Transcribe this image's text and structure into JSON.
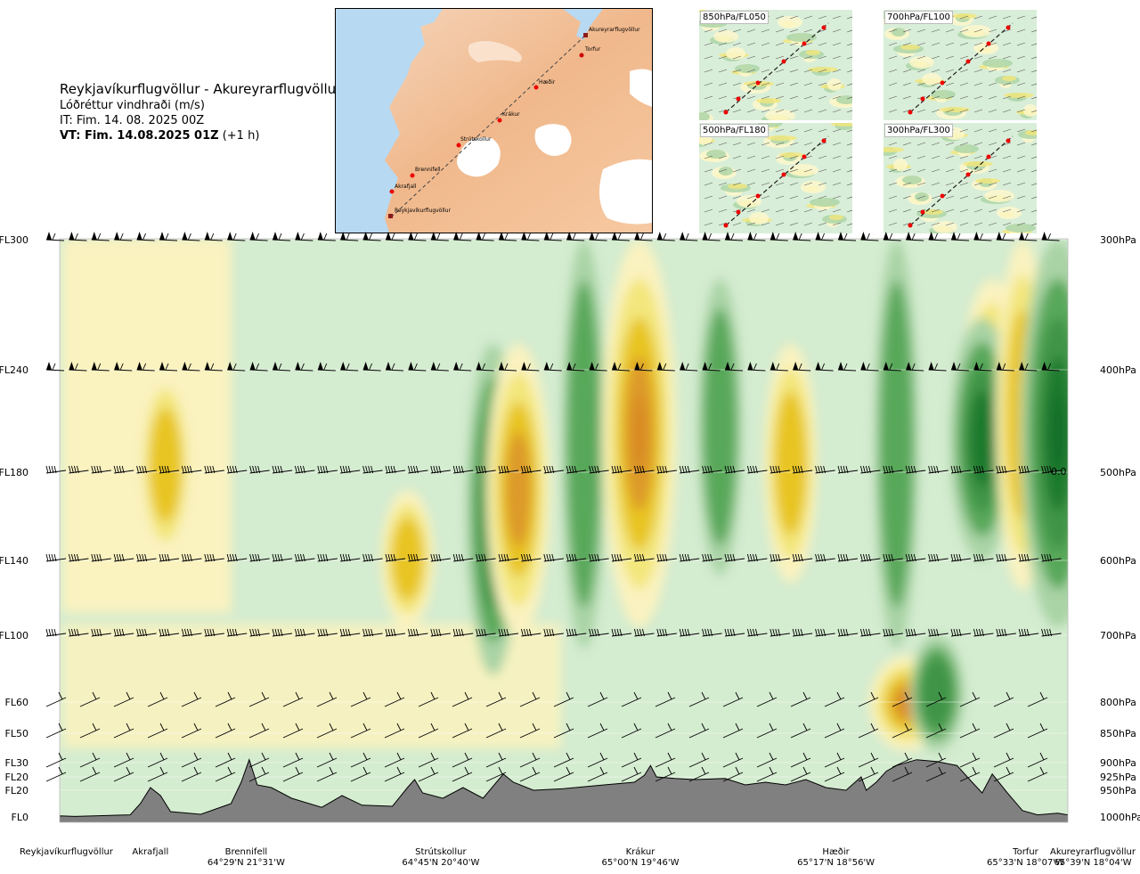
{
  "title": {
    "route": "Reykjavíkurflugvöllur - Akureyrarflugvöllur",
    "parameter": "Lóðréttur vindhraði (m/s)",
    "init_time": "IT: Fim. 14. 08. 2025 00Z",
    "valid_label": "VT: Fim. 14.08.2025 01Z",
    "valid_offset": "(+1 h)"
  },
  "route_map": {
    "waypoints": [
      "Akureyrarflugvöllur",
      "Torfur",
      "Hæðir",
      "Krákur",
      "Strútskollur",
      "Brennifell",
      "Akrafjall",
      "Reykjavíkurflugvöllur"
    ]
  },
  "mini_maps": [
    {
      "label": "850hPa/FL050"
    },
    {
      "label": "700hPa/FL100"
    },
    {
      "label": "500hPa/FL180"
    },
    {
      "label": "300hPa/FL300"
    }
  ],
  "colors": {
    "strong_down": "#1b7a2e",
    "mid_down": "#59a85a",
    "weak_down": "#a9d3a5",
    "faint_down": "#d4ecd0",
    "neutral": "#ffffff",
    "faint_up": "#faf2bf",
    "weak_up": "#f3e67b",
    "mid_up": "#e8c521",
    "strong_up": "#dd9a2a",
    "terrain": "#808080"
  },
  "chart_data": {
    "type": "heatmap",
    "flight_levels": [
      "FL300",
      "FL240",
      "FL180",
      "FL140",
      "FL100",
      "FL60",
      "FL50",
      "FL30",
      "FL20",
      "FL20",
      "FL0"
    ],
    "pressure_levels": [
      "300hPa",
      "400hPa",
      "500hPa",
      "600hPa",
      "700hPa",
      "800hPa",
      "850hPa",
      "900hPa",
      "925hPa",
      "950hPa",
      "1000hPa"
    ],
    "level_hpa": [
      300,
      400,
      500,
      600,
      700,
      800,
      850,
      900,
      925,
      950,
      1000
    ],
    "contour_label": "0.0",
    "x_stations": [
      {
        "name": "Reykjavíkurflugvöllur",
        "coords": "",
        "dist": 0.0
      },
      {
        "name": "Akrafjall",
        "coords": "",
        "dist": 0.09
      },
      {
        "name": "Brennifell",
        "coords": "64°29'N 21°31'W",
        "dist": 0.185
      },
      {
        "name": "Strútskollur",
        "coords": "64°45'N 20°40'W",
        "dist": 0.378
      },
      {
        "name": "Krákur",
        "coords": "65°00'N 19°46'W",
        "dist": 0.576
      },
      {
        "name": "Hæðir",
        "coords": "65°17'N 18°56'W",
        "dist": 0.77
      },
      {
        "name": "Torfur",
        "coords": "65°33'N 18°07'W",
        "dist": 0.955
      },
      {
        "name": "Akureyrarflugvöllur",
        "coords": "65°39'N 18°04'W",
        "dist": 1.0
      }
    ],
    "vertical_velocity_features": [
      {
        "sign": "up",
        "x_center": 0.105,
        "p_top": 400,
        "p_bottom": 600,
        "strength": 2
      },
      {
        "sign": "up",
        "x_center": 0.345,
        "p_top": 520,
        "p_bottom": 690,
        "strength": 2
      },
      {
        "sign": "down",
        "x_center": 0.43,
        "p_top": 380,
        "p_bottom": 760,
        "strength": 2
      },
      {
        "sign": "up",
        "x_center": 0.455,
        "p_top": 380,
        "p_bottom": 700,
        "strength": 3
      },
      {
        "sign": "down",
        "x_center": 0.52,
        "p_top": 300,
        "p_bottom": 720,
        "strength": 1
      },
      {
        "sign": "up",
        "x_center": 0.575,
        "p_top": 300,
        "p_bottom": 690,
        "strength": 4
      },
      {
        "sign": "down",
        "x_center": 0.655,
        "p_top": 330,
        "p_bottom": 620,
        "strength": 1
      },
      {
        "sign": "up",
        "x_center": 0.725,
        "p_top": 380,
        "p_bottom": 630,
        "strength": 2
      },
      {
        "sign": "down",
        "x_center": 0.83,
        "p_top": 300,
        "p_bottom": 720,
        "strength": 1
      },
      {
        "sign": "up",
        "x_center": 0.84,
        "p_top": 730,
        "p_bottom": 880,
        "strength": 4
      },
      {
        "sign": "down",
        "x_center": 0.87,
        "p_top": 700,
        "p_bottom": 880,
        "strength": 2
      },
      {
        "sign": "up",
        "x_center": 0.925,
        "p_top": 330,
        "p_bottom": 560,
        "strength": 3
      },
      {
        "sign": "down",
        "x_center": 0.915,
        "p_top": 360,
        "p_bottom": 600,
        "strength": 3
      },
      {
        "sign": "up",
        "x_center": 0.955,
        "p_top": 300,
        "p_bottom": 640,
        "strength": 2
      },
      {
        "sign": "down",
        "x_center": 0.99,
        "p_top": 300,
        "p_bottom": 690,
        "strength": 4
      }
    ],
    "terrain_hpa": [
      [
        0.0,
        998
      ],
      [
        0.015,
        999
      ],
      [
        0.07,
        996
      ],
      [
        0.08,
        975
      ],
      [
        0.09,
        945
      ],
      [
        0.1,
        960
      ],
      [
        0.11,
        990
      ],
      [
        0.14,
        995
      ],
      [
        0.17,
        975
      ],
      [
        0.18,
        935
      ],
      [
        0.188,
        895
      ],
      [
        0.196,
        940
      ],
      [
        0.21,
        945
      ],
      [
        0.23,
        965
      ],
      [
        0.26,
        982
      ],
      [
        0.28,
        960
      ],
      [
        0.3,
        978
      ],
      [
        0.33,
        980
      ],
      [
        0.345,
        945
      ],
      [
        0.352,
        930
      ],
      [
        0.36,
        955
      ],
      [
        0.38,
        965
      ],
      [
        0.4,
        945
      ],
      [
        0.42,
        965
      ],
      [
        0.44,
        920
      ],
      [
        0.45,
        935
      ],
      [
        0.47,
        950
      ],
      [
        0.5,
        947
      ],
      [
        0.54,
        940
      ],
      [
        0.57,
        935
      ],
      [
        0.58,
        922
      ],
      [
        0.586,
        905
      ],
      [
        0.592,
        925
      ],
      [
        0.61,
        928
      ],
      [
        0.63,
        930
      ],
      [
        0.66,
        928
      ],
      [
        0.68,
        940
      ],
      [
        0.7,
        935
      ],
      [
        0.72,
        940
      ],
      [
        0.74,
        930
      ],
      [
        0.76,
        945
      ],
      [
        0.78,
        950
      ],
      [
        0.795,
        925
      ],
      [
        0.8,
        950
      ],
      [
        0.81,
        935
      ],
      [
        0.82,
        915
      ],
      [
        0.83,
        905
      ],
      [
        0.85,
        895
      ],
      [
        0.87,
        898
      ],
      [
        0.89,
        905
      ],
      [
        0.905,
        935
      ],
      [
        0.915,
        955
      ],
      [
        0.925,
        920
      ],
      [
        0.94,
        955
      ],
      [
        0.955,
        988
      ],
      [
        0.97,
        996
      ],
      [
        0.99,
        993
      ],
      [
        1.0,
        996
      ]
    ],
    "wind_barb_rows_hpa": [
      300,
      400,
      500,
      600,
      700,
      800,
      850,
      900,
      925
    ],
    "grid": false,
    "legend": "none"
  }
}
